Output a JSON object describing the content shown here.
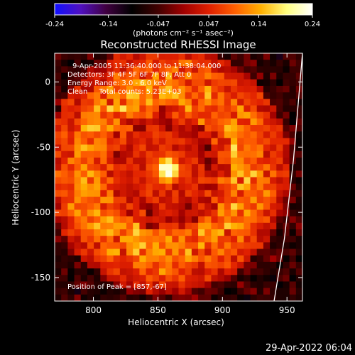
{
  "chart_data": {
    "type": "heatmap",
    "title": "Reconstructed RHESSI Image",
    "xlabel": "Heliocentric X (arcsec)",
    "ylabel": "Heliocentric Y (arcsec)",
    "xlim": [
      770,
      962
    ],
    "ylim": [
      -168,
      22
    ],
    "x_ticks": [
      800,
      850,
      900,
      950
    ],
    "y_ticks": [
      0,
      -50,
      -100,
      -150
    ],
    "colorbar": {
      "min": -0.24,
      "max": 0.24,
      "ticks": [
        "-0.24",
        "-0.14",
        "-0.047",
        "0.047",
        "0.14",
        "0.24"
      ],
      "units": "(photons cm⁻² s⁻¹ asec⁻²)",
      "colormap": [
        "#1010ff",
        "#5010c0",
        "#400040",
        "#000000",
        "#400000",
        "#a00000",
        "#e02000",
        "#ff6000",
        "#ffb000",
        "#ffff80",
        "#ffffff"
      ]
    },
    "annotations": [
      "9-Apr-2005 11:36:40.000 to 11:38:04.000",
      "Detectors: 3F 4F 5F 6F 7F 8F, Att 0",
      "Energy Range: 3.0 - 6.0 keV",
      "Clean     Total counts: 5.23E+03"
    ],
    "peak_label": "Position of Peak = [857,-67]",
    "peak": {
      "x": 857,
      "y": -67,
      "value": 0.24
    },
    "limb_line": [
      [
        962,
        22
      ],
      [
        955,
        -60
      ],
      [
        948,
        -120
      ],
      [
        940,
        -168
      ]
    ],
    "grid": false
  },
  "timestamp": "29-Apr-2022 06:04"
}
